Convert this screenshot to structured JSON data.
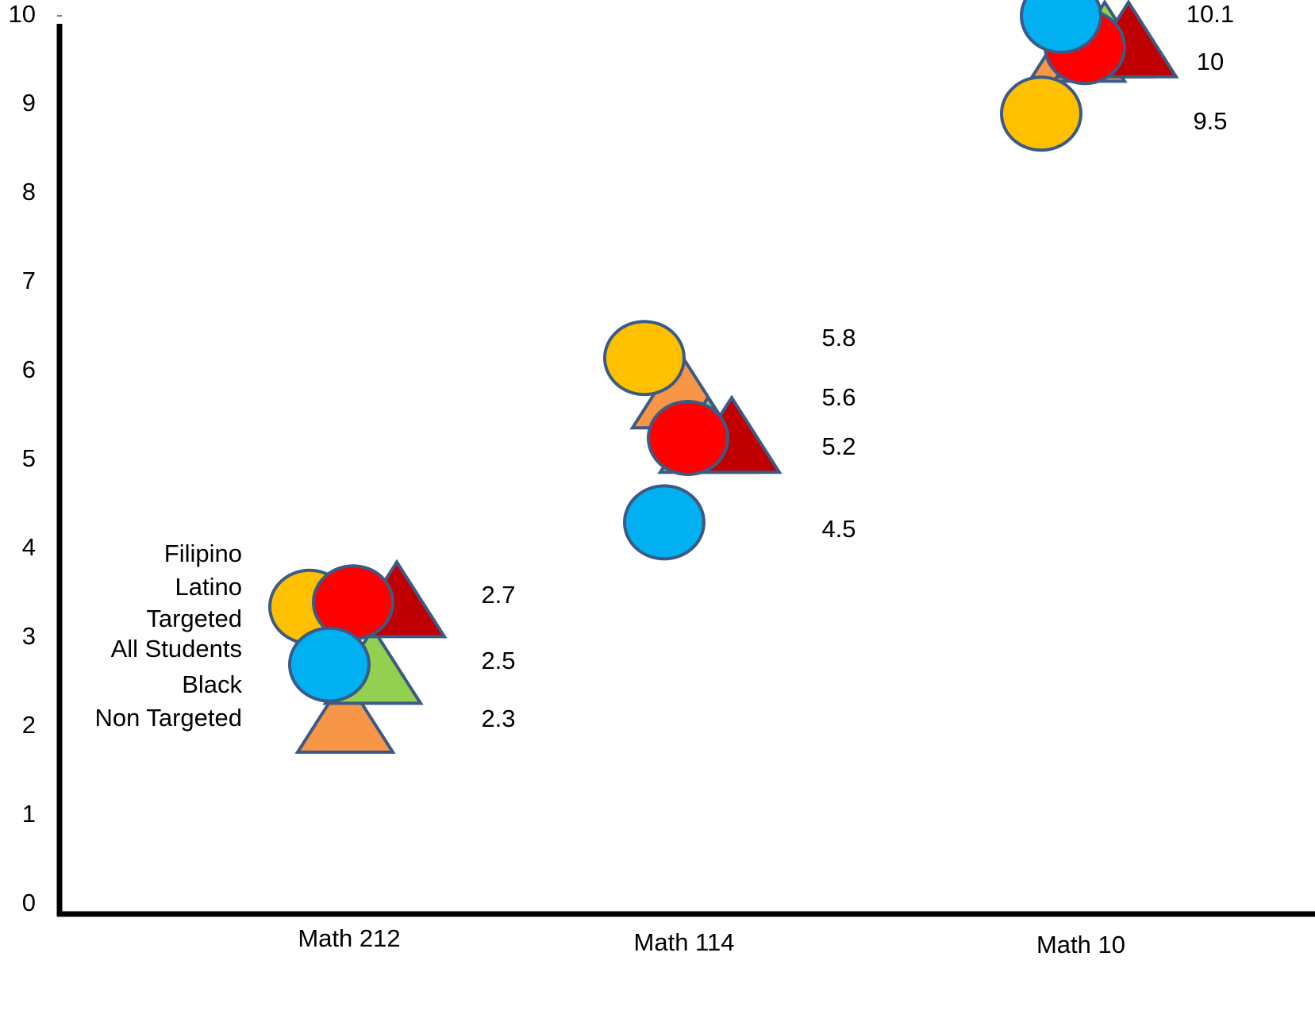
{
  "chart_data": {
    "type": "scatter",
    "categories": [
      "Math  212",
      "Math  114",
      "Math  10"
    ],
    "series": [
      {
        "name": "Filipino",
        "color": "#ffc000",
        "marker": "circle",
        "values": [
          3.35,
          6.15,
          8.9
        ]
      },
      {
        "name": "Latino",
        "color": "#ff0000",
        "marker": "circle",
        "values": [
          3.4,
          5.25,
          9.65
        ]
      },
      {
        "name": "Targeted",
        "color": "#c00000",
        "marker": "triangle",
        "values": [
          3.3,
          5.15,
          9.6
        ]
      },
      {
        "name": "All Students",
        "color": "#92d050",
        "marker": "triangle",
        "values": [
          2.55,
          5.15,
          9.6
        ]
      },
      {
        "name": "Black",
        "color": "#00b0f0",
        "marker": "circle",
        "values": [
          2.7,
          4.3,
          10
        ]
      },
      {
        "name": "Non Targeted",
        "color": "#f79646",
        "marker": "triangle",
        "values": [
          2.0,
          5.65,
          9.55
        ]
      }
    ],
    "annotations": [
      [
        "2.7",
        "2.5",
        "2.3"
      ],
      [
        "5.8",
        "5.6",
        "5.2",
        "4.5"
      ],
      [
        "10.1",
        "10",
        "9.5"
      ]
    ],
    "ylim": [
      0,
      10
    ],
    "yticks": [
      0,
      1,
      2,
      3,
      4,
      5,
      6,
      7,
      8,
      9,
      10
    ]
  }
}
